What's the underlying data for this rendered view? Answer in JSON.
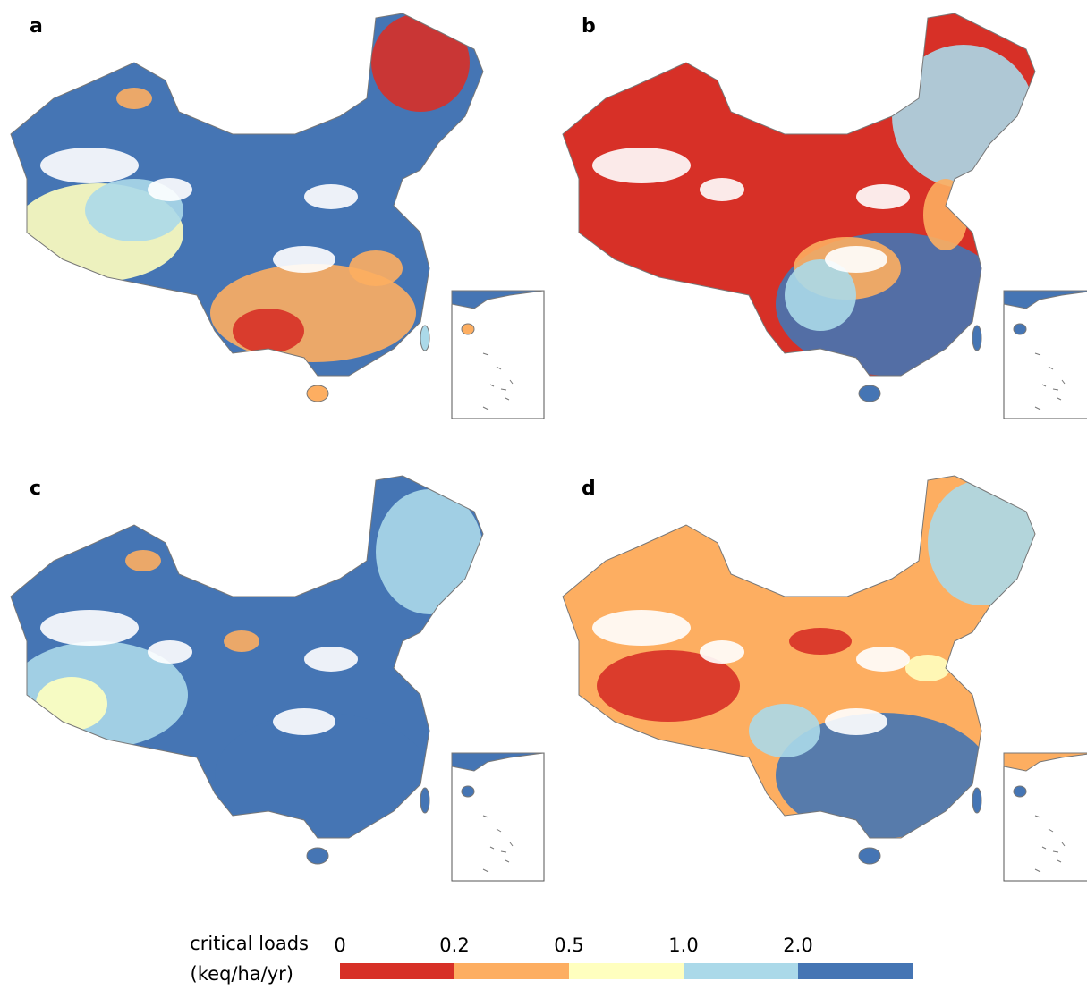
{
  "panels": [
    {
      "label": "a"
    },
    {
      "label": "b"
    },
    {
      "label": "c"
    },
    {
      "label": "d"
    }
  ],
  "legend": {
    "title": [
      "critical loads",
      "(keq/ha/yr)"
    ],
    "ticks": [
      "0",
      "0.2",
      "0.5",
      "1.0",
      "2.0"
    ],
    "colors": [
      "#d73027",
      "#fdae61",
      "#ffffbf",
      "#abd9e9",
      "#4575b4"
    ]
  }
}
